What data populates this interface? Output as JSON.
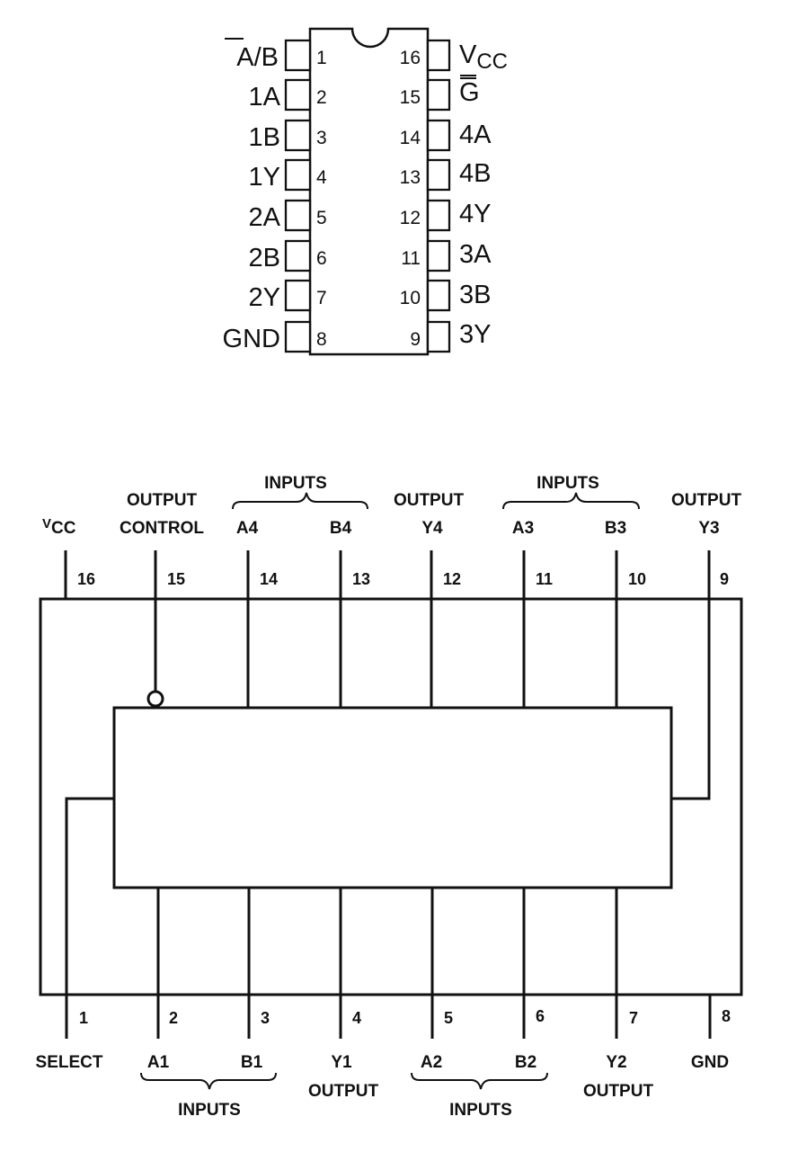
{
  "dip": {
    "left_pins": [
      {
        "num": "1",
        "label_bar": "A",
        "label_rest": "/B"
      },
      {
        "num": "2",
        "label": "1A"
      },
      {
        "num": "3",
        "label": "1B"
      },
      {
        "num": "4",
        "label": "1Y"
      },
      {
        "num": "5",
        "label": "2A"
      },
      {
        "num": "6",
        "label": "2B"
      },
      {
        "num": "7",
        "label": "2Y"
      },
      {
        "num": "8",
        "label": "GND"
      }
    ],
    "right_pins": [
      {
        "num": "16",
        "label_main": "V",
        "label_sub": "CC"
      },
      {
        "num": "15",
        "label_bar": "G"
      },
      {
        "num": "14",
        "label": "4A"
      },
      {
        "num": "13",
        "label": "4B"
      },
      {
        "num": "12",
        "label": "4Y"
      },
      {
        "num": "11",
        "label": "3A"
      },
      {
        "num": "10",
        "label": "3B"
      },
      {
        "num": "9",
        "label": "3Y"
      }
    ]
  },
  "logic": {
    "top_pins": [
      "16",
      "15",
      "14",
      "13",
      "12",
      "11",
      "10",
      "9"
    ],
    "bottom_pins": [
      "1",
      "2",
      "3",
      "4",
      "5",
      "6",
      "7",
      "8"
    ],
    "top_labels": {
      "vcc_main": "V",
      "vcc_sub": "CC",
      "output_control_line1": "OUTPUT",
      "output_control_line2": "CONTROL",
      "inputs_group_1": "INPUTS",
      "a4": "A4",
      "b4": "B4",
      "output_y4_line1": "OUTPUT",
      "y4": "Y4",
      "inputs_group_2": "INPUTS",
      "a3": "A3",
      "b3": "B3",
      "output_y3_line1": "OUTPUT",
      "y3": "Y3"
    },
    "bottom_labels": {
      "select": "SELECT",
      "a1": "A1",
      "b1": "B1",
      "inputs_group_1": "INPUTS",
      "y1": "Y1",
      "y1_output": "OUTPUT",
      "a2": "A2",
      "b2": "B2",
      "inputs_group_2": "INPUTS",
      "y2": "Y2",
      "y2_output": "OUTPUT",
      "gnd": "GND"
    }
  }
}
